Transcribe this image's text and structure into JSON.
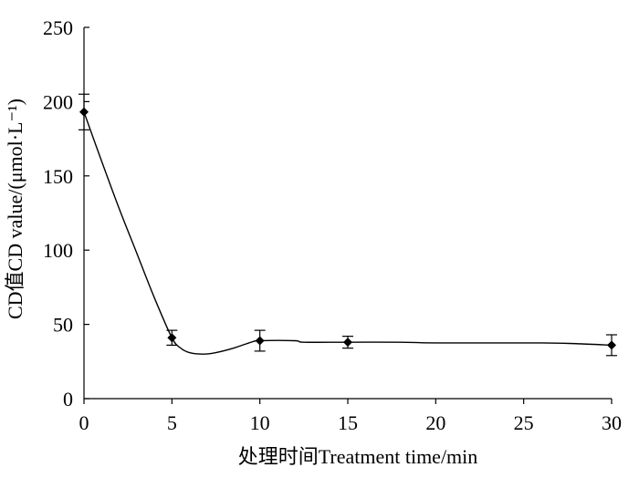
{
  "chart_data": {
    "type": "line",
    "title": "",
    "xlabel": "处理时间Treatment time/min",
    "ylabel": "CD值CD value/(μmol·L⁻¹)",
    "xlim": [
      0,
      30
    ],
    "ylim": [
      0,
      250
    ],
    "x_ticks": [
      0,
      5,
      10,
      15,
      20,
      25,
      30
    ],
    "y_ticks": [
      0,
      50,
      100,
      150,
      200,
      250
    ],
    "grid": false,
    "legend": "none",
    "colors": {
      "line": "#000000",
      "marker": "#000000"
    },
    "series": [
      {
        "points": [
          {
            "x": 0,
            "y": 193,
            "err": 12
          },
          {
            "x": 5,
            "y": 41,
            "err": 5
          },
          {
            "x": 10,
            "y": 39,
            "err": 7
          },
          {
            "x": 15,
            "y": 38,
            "err": 4
          },
          {
            "x": 30,
            "y": 36,
            "err": 7
          }
        ],
        "curve": [
          [
            0,
            193
          ],
          [
            1,
            160
          ],
          [
            2,
            128
          ],
          [
            3,
            98
          ],
          [
            4,
            68
          ],
          [
            5,
            41
          ],
          [
            5.5,
            34
          ],
          [
            6,
            31
          ],
          [
            6.8,
            30
          ],
          [
            7.5,
            31
          ],
          [
            8.5,
            34
          ],
          [
            9.5,
            38
          ],
          [
            10,
            39
          ],
          [
            12,
            39
          ],
          [
            12.5,
            38
          ],
          [
            15,
            38
          ],
          [
            18,
            38
          ],
          [
            20,
            37.5
          ],
          [
            26,
            37.5
          ],
          [
            28,
            37
          ],
          [
            30,
            36
          ]
        ]
      }
    ]
  }
}
